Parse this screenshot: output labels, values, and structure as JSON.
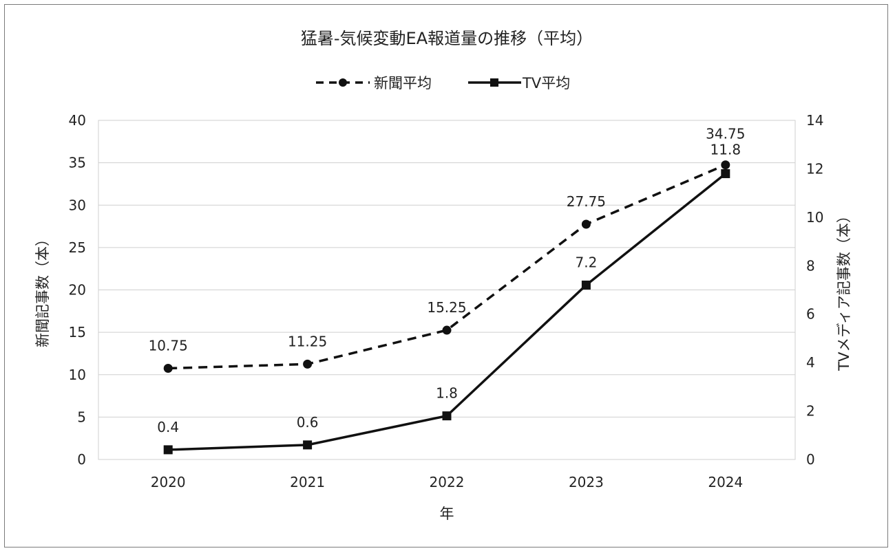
{
  "chart_data": {
    "type": "line",
    "title": "猛暑-気候変動EA報道量の推移（平均）",
    "xlabel": "年",
    "ylabel": "新聞記事数（本）",
    "y2label": "TVメディア記事数（本）",
    "categories": [
      "2020",
      "2021",
      "2022",
      "2023",
      "2024"
    ],
    "ylim": [
      0,
      40
    ],
    "y2lim": [
      0,
      14
    ],
    "yticks": [
      "0",
      "5",
      "10",
      "15",
      "20",
      "25",
      "30",
      "35",
      "40"
    ],
    "y2ticks": [
      "0",
      "2",
      "4",
      "6",
      "8",
      "10",
      "12",
      "14"
    ],
    "grid": true,
    "legend_position": "top",
    "series": [
      {
        "name": "新聞平均",
        "axis": "left",
        "style": "dashed",
        "marker": "circle",
        "color": "#111111",
        "values": [
          10.75,
          11.25,
          15.25,
          27.75,
          34.75
        ],
        "labels": [
          "10.75",
          "11.25",
          "15.25",
          "27.75",
          "34.75"
        ]
      },
      {
        "name": "TV平均",
        "axis": "right",
        "style": "solid",
        "marker": "square",
        "color": "#111111",
        "values": [
          0.4,
          0.6,
          1.8,
          7.2,
          11.8
        ],
        "labels": [
          "0.4",
          "0.6",
          "1.8",
          "7.2",
          "11.8"
        ]
      }
    ]
  }
}
